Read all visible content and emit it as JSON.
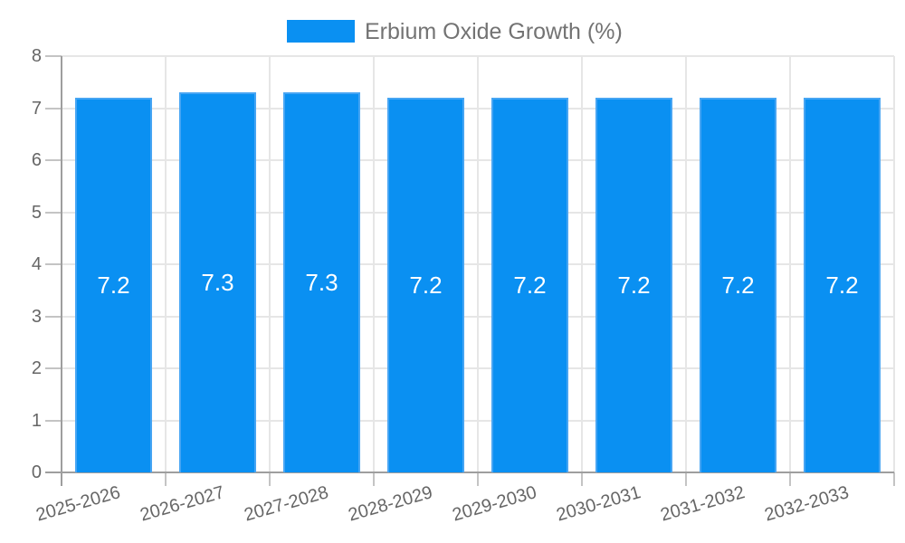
{
  "chart_data": {
    "type": "bar",
    "title": "",
    "legend": "Erbium Oxide Growth (%)",
    "legend_position": "top",
    "categories": [
      "2025-2026",
      "2026-2027",
      "2027-2028",
      "2028-2029",
      "2029-2030",
      "2030-2031",
      "2031-2032",
      "2032-2033"
    ],
    "values": [
      7.2,
      7.3,
      7.3,
      7.2,
      7.2,
      7.2,
      7.2,
      7.2
    ],
    "value_labels": [
      "7.2",
      "7.3",
      "7.3",
      "7.2",
      "7.2",
      "7.2",
      "7.2",
      "7.2"
    ],
    "xlabel": "",
    "ylabel": "",
    "ylim": [
      0,
      8
    ],
    "yticks": [
      0,
      1,
      2,
      3,
      4,
      5,
      6,
      7,
      8
    ],
    "grid": true,
    "colors": {
      "bar_fill": "#0a90f2",
      "bar_border": "#47a5f3",
      "gridline": "#e6e6e6",
      "axis_line": "#9e9e9e",
      "tick_mark": "#c4c4c4",
      "tick_text": "#666666",
      "legend_text": "#737373",
      "value_text": "#ffffff",
      "background": "#ffffff"
    }
  }
}
